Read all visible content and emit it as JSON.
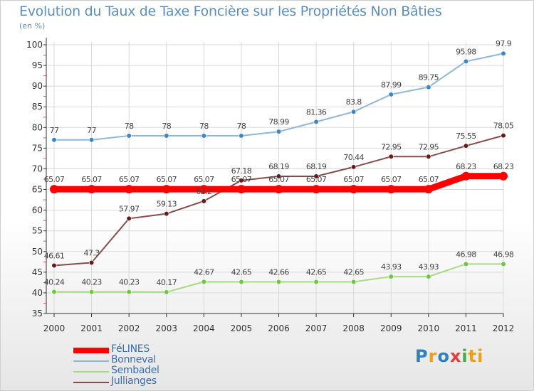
{
  "title": "Evolution du Taux de Taxe Foncière sur les Propriétés Non Bâties",
  "unit_label": "(en %)",
  "logo_text": "Proxiti",
  "chart_data": {
    "type": "line",
    "title": "Evolution du Taux de Taxe Foncière sur les Propriétés Non Bâties",
    "ylabel": "(en %)",
    "xlabel": "",
    "x": [
      "2000",
      "2001",
      "2002",
      "2003",
      "2004",
      "2005",
      "2006",
      "2007",
      "2008",
      "2009",
      "2010",
      "2011",
      "2012"
    ],
    "ylim": [
      35,
      100
    ],
    "yticks": [
      "35",
      "40",
      "45",
      "50",
      "55",
      "60",
      "65",
      "70",
      "75",
      "80",
      "85",
      "90",
      "95",
      "100"
    ],
    "grid": true,
    "legend_position": "bottom-left",
    "series": [
      {
        "name": "FéLINES",
        "color": "#ff0000",
        "marker": "#ff0000",
        "emphasis": true,
        "values": [
          65.07,
          65.07,
          65.07,
          65.07,
          65.07,
          65.07,
          65.07,
          65.07,
          65.07,
          65.07,
          65.07,
          68.23,
          68.23
        ],
        "labels": [
          "65.07",
          "65.07",
          "65.07",
          "65.07",
          "65.07",
          "65.07",
          "65.07",
          "65.07",
          "65.07",
          "65.07",
          "65.07",
          "68.23",
          "68.23"
        ]
      },
      {
        "name": "Bonneval",
        "color": "#8fb6dc",
        "marker": "#3b86c6",
        "values": [
          77,
          77,
          78,
          78,
          78,
          78,
          78.99,
          81.36,
          83.8,
          87.99,
          89.75,
          95.98,
          97.9
        ],
        "labels": [
          "77",
          "77",
          "78",
          "78",
          "78",
          "78",
          "78.99",
          "81.36",
          "83.8",
          "87.99",
          "89.75",
          "95.98",
          "97.9"
        ]
      },
      {
        "name": "Sembadel",
        "color": "#a6dc80",
        "marker": "#6cc83c",
        "values": [
          40.24,
          40.23,
          40.23,
          40.17,
          42.67,
          42.65,
          42.66,
          42.65,
          42.65,
          43.93,
          43.93,
          46.98,
          46.98
        ],
        "labels": [
          "40.24",
          "40.23",
          "40.23",
          "40.17",
          "42.67",
          "42.65",
          "42.66",
          "42.65",
          "42.65",
          "43.93",
          "43.93",
          "46.98",
          "46.98"
        ]
      },
      {
        "name": "Jullianges",
        "color": "#8a4b4b",
        "marker": "#6a1a1a",
        "values": [
          46.61,
          47.3,
          57.97,
          59.13,
          62.2,
          67.18,
          68.19,
          68.19,
          70.44,
          72.95,
          72.95,
          75.55,
          78.05
        ],
        "labels": [
          "46.61",
          "47.3",
          "57.97",
          "59.13",
          "62.2",
          "67.18",
          "68.19",
          "68.19",
          "70.44",
          "72.95",
          "72.95",
          "75.55",
          "78.05"
        ]
      }
    ]
  }
}
